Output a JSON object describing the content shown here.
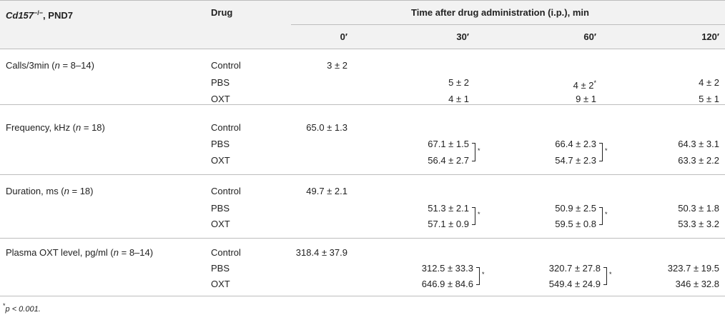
{
  "header": {
    "gene": "Cd157",
    "gene_sup": "−/−",
    "gene_suffix": ", PND7",
    "drug": "Drug",
    "time_group": "Time after drug administration (i.p.), min",
    "times": [
      "0′",
      "30′",
      "60′",
      "120′"
    ]
  },
  "groups": [
    {
      "label": "Calls/3min (",
      "n_sym": "n",
      "n_tail": " = 8–14)",
      "control": "3 ± 2",
      "pbs": [
        "5 ± 2",
        "4 ± 2",
        "4 ± 2"
      ],
      "pbs_60_mark": "*",
      "oxt": [
        "4 ± 1",
        "9 ± 1",
        "5 ± 1"
      ]
    },
    {
      "label": "Frequency, kHz (",
      "n_sym": "n",
      "n_tail": " = 18)",
      "control": "65.0 ± 1.3",
      "pbs": [
        "67.1 ± 1.5",
        "66.4 ± 2.3",
        "64.3 ± 3.1"
      ],
      "oxt": [
        "56.4 ± 2.7",
        "54.7 ± 2.3",
        "63.3 ± 2.2"
      ]
    },
    {
      "label": "Duration, ms (",
      "n_sym": "n",
      "n_tail": " = 18)",
      "control": "49.7 ± 2.1",
      "pbs": [
        "51.3 ± 2.1",
        "50.9 ± 2.5",
        "50.3 ± 1.8"
      ],
      "oxt": [
        "57.1 ± 0.9",
        "59.5 ± 0.8",
        "53.3 ± 3.2"
      ]
    },
    {
      "label": "Plasma OXT level, pg/ml (",
      "n_sym": "n",
      "n_tail": " = 8–14)",
      "control": "318.4 ± 37.9",
      "pbs": [
        "312.5 ± 33.3",
        "320.7 ± 27.8",
        "323.7 ± 19.5"
      ],
      "oxt": [
        "646.9 ± 84.6",
        "549.4 ± 24.9",
        "346 ± 32.8"
      ]
    }
  ],
  "row_labels": {
    "control": "Control",
    "pbs": "PBS",
    "oxt": "OXT"
  },
  "sig_mark": "*",
  "footnote": {
    "mark": "*",
    "text": "p < 0.001."
  }
}
